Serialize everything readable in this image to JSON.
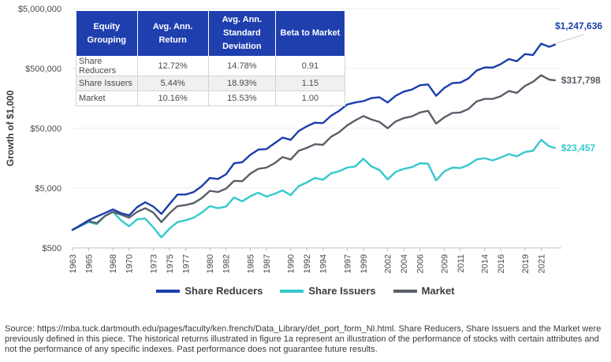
{
  "chart_data": {
    "type": "line",
    "ylabel": "Growth of $1,000",
    "yscale": "log",
    "ylim": [
      500,
      5000000
    ],
    "ytick_labels": [
      "$500",
      "$5,000",
      "$50,000",
      "$500,000",
      "$5,000,000"
    ],
    "xlim": [
      1963,
      2023.5
    ],
    "xtick_labels": [
      "1963",
      "1965",
      "1968",
      "1970",
      "1973",
      "1975",
      "1977",
      "1980",
      "1982",
      "1985",
      "1987",
      "1990",
      "1992",
      "1994",
      "1997",
      "1999",
      "2002",
      "2004",
      "2006",
      "2009",
      "2011",
      "2014",
      "2016",
      "2019",
      "2021"
    ],
    "series": [
      {
        "name": "Share Reducers",
        "color": "#1a3fad",
        "end_label": "$1,247,636",
        "points": [
          [
            1963,
            1000
          ],
          [
            1965,
            1450
          ],
          [
            1968,
            2200
          ],
          [
            1969,
            1900
          ],
          [
            1970,
            1750
          ],
          [
            1971,
            2400
          ],
          [
            1972,
            2900
          ],
          [
            1973,
            2450
          ],
          [
            1974,
            1850
          ],
          [
            1975,
            2700
          ],
          [
            1976,
            3900
          ],
          [
            1977,
            3900
          ],
          [
            1978,
            4300
          ],
          [
            1979,
            5400
          ],
          [
            1980,
            7400
          ],
          [
            1981,
            7100
          ],
          [
            1982,
            8500
          ],
          [
            1983,
            13000
          ],
          [
            1984,
            13500
          ],
          [
            1985,
            18000
          ],
          [
            1986,
            22000
          ],
          [
            1987,
            22500
          ],
          [
            1988,
            28000
          ],
          [
            1989,
            35000
          ],
          [
            1990,
            32000
          ],
          [
            1991,
            45000
          ],
          [
            1992,
            54000
          ],
          [
            1993,
            62000
          ],
          [
            1994,
            61000
          ],
          [
            1995,
            81000
          ],
          [
            1996,
            98000
          ],
          [
            1997,
            125000
          ],
          [
            1998,
            135000
          ],
          [
            1999,
            142000
          ],
          [
            2000,
            160000
          ],
          [
            2001,
            165000
          ],
          [
            2002,
            135000
          ],
          [
            2003,
            175000
          ],
          [
            2004,
            205000
          ],
          [
            2005,
            222000
          ],
          [
            2006,
            262000
          ],
          [
            2007,
            270000
          ],
          [
            2008,
            175000
          ],
          [
            2009,
            235000
          ],
          [
            2010,
            285000
          ],
          [
            2011,
            290000
          ],
          [
            2012,
            340000
          ],
          [
            2013,
            460000
          ],
          [
            2014,
            520000
          ],
          [
            2015,
            515000
          ],
          [
            2016,
            590000
          ],
          [
            2017,
            720000
          ],
          [
            2018,
            660000
          ],
          [
            2019,
            870000
          ],
          [
            2020,
            840000
          ],
          [
            2021,
            1300000
          ],
          [
            2022,
            1150000
          ],
          [
            2022.7,
            1247636
          ]
        ]
      },
      {
        "name": "Share Issuers",
        "color": "#35c8cc",
        "end_label": "$23,457",
        "points": [
          [
            1963,
            1000
          ],
          [
            1965,
            1350
          ],
          [
            1966,
            1250
          ],
          [
            1967,
            1700
          ],
          [
            1968,
            2000
          ],
          [
            1969,
            1450
          ],
          [
            1970,
            1150
          ],
          [
            1971,
            1500
          ],
          [
            1972,
            1550
          ],
          [
            1973,
            1100
          ],
          [
            1974,
            750
          ],
          [
            1975,
            1050
          ],
          [
            1976,
            1350
          ],
          [
            1977,
            1450
          ],
          [
            1978,
            1600
          ],
          [
            1979,
            1950
          ],
          [
            1980,
            2500
          ],
          [
            1981,
            2300
          ],
          [
            1982,
            2450
          ],
          [
            1983,
            3500
          ],
          [
            1984,
            3000
          ],
          [
            1985,
            3650
          ],
          [
            1986,
            4200
          ],
          [
            1987,
            3600
          ],
          [
            1988,
            4000
          ],
          [
            1989,
            4600
          ],
          [
            1990,
            3800
          ],
          [
            1991,
            5400
          ],
          [
            1992,
            6200
          ],
          [
            1993,
            7400
          ],
          [
            1994,
            6900
          ],
          [
            1995,
            8800
          ],
          [
            1996,
            9600
          ],
          [
            1997,
            11000
          ],
          [
            1998,
            11500
          ],
          [
            1999,
            15500
          ],
          [
            2000,
            11500
          ],
          [
            2001,
            10000
          ],
          [
            2002,
            7000
          ],
          [
            2003,
            9300
          ],
          [
            2004,
            10500
          ],
          [
            2005,
            11200
          ],
          [
            2006,
            13000
          ],
          [
            2007,
            12800
          ],
          [
            2008,
            6700
          ],
          [
            2009,
            9500
          ],
          [
            2010,
            11000
          ],
          [
            2011,
            10800
          ],
          [
            2012,
            12200
          ],
          [
            2013,
            15000
          ],
          [
            2014,
            15800
          ],
          [
            2015,
            14500
          ],
          [
            2016,
            16200
          ],
          [
            2017,
            18500
          ],
          [
            2018,
            17000
          ],
          [
            2019,
            20000
          ],
          [
            2020,
            21000
          ],
          [
            2021,
            32000
          ],
          [
            2022,
            25000
          ],
          [
            2022.7,
            23457
          ]
        ]
      },
      {
        "name": "Market",
        "color": "#595f69",
        "end_label": "$317,798",
        "points": [
          [
            1963,
            1000
          ],
          [
            1965,
            1400
          ],
          [
            1966,
            1300
          ],
          [
            1967,
            1700
          ],
          [
            1968,
            2000
          ],
          [
            1969,
            1800
          ],
          [
            1970,
            1600
          ],
          [
            1971,
            2000
          ],
          [
            1972,
            2300
          ],
          [
            1973,
            1950
          ],
          [
            1974,
            1350
          ],
          [
            1975,
            1900
          ],
          [
            1976,
            2500
          ],
          [
            1977,
            2600
          ],
          [
            1978,
            2800
          ],
          [
            1979,
            3400
          ],
          [
            1980,
            4500
          ],
          [
            1981,
            4300
          ],
          [
            1982,
            4900
          ],
          [
            1983,
            6600
          ],
          [
            1984,
            6500
          ],
          [
            1985,
            8700
          ],
          [
            1986,
            10500
          ],
          [
            1987,
            11000
          ],
          [
            1988,
            13000
          ],
          [
            1989,
            16500
          ],
          [
            1990,
            15000
          ],
          [
            1991,
            21000
          ],
          [
            1992,
            23500
          ],
          [
            1993,
            27000
          ],
          [
            1994,
            26500
          ],
          [
            1995,
            36000
          ],
          [
            1996,
            43000
          ],
          [
            1997,
            56000
          ],
          [
            1998,
            68000
          ],
          [
            1999,
            80000
          ],
          [
            2000,
            70000
          ],
          [
            2001,
            64000
          ],
          [
            2002,
            50000
          ],
          [
            2003,
            65000
          ],
          [
            2004,
            74000
          ],
          [
            2005,
            79000
          ],
          [
            2006,
            92000
          ],
          [
            2007,
            98000
          ],
          [
            2008,
            60000
          ],
          [
            2009,
            76000
          ],
          [
            2010,
            90000
          ],
          [
            2011,
            92000
          ],
          [
            2012,
            105000
          ],
          [
            2013,
            140000
          ],
          [
            2014,
            155000
          ],
          [
            2015,
            155000
          ],
          [
            2016,
            172000
          ],
          [
            2017,
            210000
          ],
          [
            2018,
            195000
          ],
          [
            2019,
            255000
          ],
          [
            2020,
            300000
          ],
          [
            2021,
            385000
          ],
          [
            2022,
            325000
          ],
          [
            2022.7,
            317798
          ]
        ]
      }
    ]
  },
  "table": {
    "headers": [
      "Equity Grouping",
      "Avg. Ann. Return",
      "Avg. Ann. Standard Deviation",
      "Beta to Market"
    ],
    "rows": [
      [
        "Share Reducers",
        "12.72%",
        "14.78%",
        "0.91"
      ],
      [
        "Share Issuers",
        "5.44%",
        "18.93%",
        "1.15"
      ],
      [
        "Market",
        "10.16%",
        "15.53%",
        "1.00"
      ]
    ]
  },
  "footnote": "Source: https://mba.tuck.dartmouth.edu/pages/faculty/ken.french/Data_Library/det_port_form_NI.html. Share Reducers, Share Issuers and the Market were previously defined in this piece. The historical returns illustrated in figure 1a represent an illustration of the performance of stocks with certain attributes and not the performance of any specific indexes. Past performance does not guarantee future results."
}
